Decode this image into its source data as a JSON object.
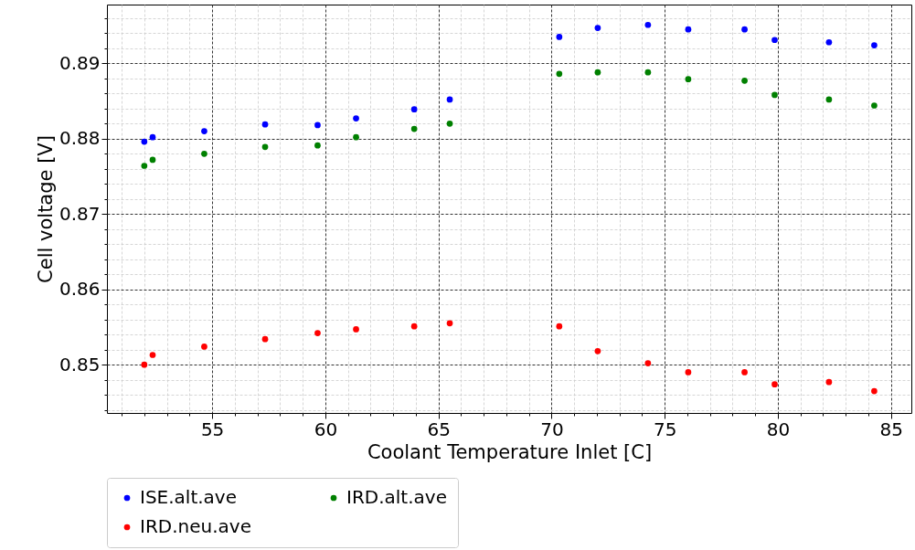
{
  "chart_data": {
    "type": "scatter",
    "xlabel": "Coolant Temperature Inlet [C]",
    "ylabel": "Cell voltage [V]",
    "x": [
      52.0,
      52.37,
      54.65,
      57.34,
      59.66,
      61.36,
      63.93,
      65.5,
      70.34,
      72.04,
      74.26,
      76.04,
      78.53,
      79.86,
      82.26,
      84.26
    ],
    "series": [
      {
        "name": "ISE.alt.ave",
        "color": "#0000ff",
        "values": [
          0.8796,
          0.8802,
          0.881,
          0.8819,
          0.8818,
          0.8827,
          0.8839,
          0.8852,
          0.8935,
          0.8947,
          0.8951,
          0.8945,
          0.8945,
          0.8931,
          0.8928,
          0.8924
        ]
      },
      {
        "name": "IRD.alt.ave",
        "color": "#008000",
        "values": [
          0.8764,
          0.8772,
          0.878,
          0.8789,
          0.8791,
          0.8802,
          0.8813,
          0.882,
          0.8886,
          0.8888,
          0.8888,
          0.8879,
          0.8877,
          0.8858,
          0.8852,
          0.8844
        ]
      },
      {
        "name": "IRD.neu.ave",
        "color": "#ff0000",
        "values": [
          0.85,
          0.8513,
          0.8524,
          0.8534,
          0.8542,
          0.8547,
          0.8551,
          0.8555,
          0.8551,
          0.8518,
          0.8502,
          0.849,
          0.849,
          0.8474,
          0.8477,
          0.8465
        ]
      }
    ],
    "xlim": [
      50.35,
      85.9
    ],
    "ylim": [
      0.8436,
      0.8978
    ],
    "xticks": [
      {
        "value": 51,
        "label": null
      },
      {
        "value": 52,
        "label": null
      },
      {
        "value": 53,
        "label": null
      },
      {
        "value": 54,
        "label": null
      },
      55,
      {
        "value": 56,
        "label": null
      },
      {
        "value": 57,
        "label": null
      },
      {
        "value": 58,
        "label": null
      },
      {
        "value": 59,
        "label": null
      },
      60,
      {
        "value": 61,
        "label": null
      },
      {
        "value": 62,
        "label": null
      },
      {
        "value": 63,
        "label": null
      },
      {
        "value": 64,
        "label": null
      },
      65,
      {
        "value": 66,
        "label": null
      },
      {
        "value": 67,
        "label": null
      },
      {
        "value": 68,
        "label": null
      },
      {
        "value": 69,
        "label": null
      },
      70,
      {
        "value": 71,
        "label": null
      },
      {
        "value": 72,
        "label": null
      },
      {
        "value": 73,
        "label": null
      },
      {
        "value": 74,
        "label": null
      },
      75,
      {
        "value": 76,
        "label": null
      },
      {
        "value": 77,
        "label": null
      },
      {
        "value": 78,
        "label": null
      },
      {
        "value": 79,
        "label": null
      },
      80,
      {
        "value": 81,
        "label": null
      },
      {
        "value": 82,
        "label": null
      },
      {
        "value": 83,
        "label": null
      },
      {
        "value": 84,
        "label": null
      },
      85
    ],
    "yticks": [
      {
        "value": 0.844,
        "label": null
      },
      {
        "value": 0.846,
        "label": null
      },
      {
        "value": 0.848,
        "label": null
      },
      0.85,
      {
        "value": 0.852,
        "label": null
      },
      {
        "value": 0.854,
        "label": null
      },
      {
        "value": 0.856,
        "label": null
      },
      {
        "value": 0.858,
        "label": null
      },
      0.86,
      {
        "value": 0.862,
        "label": null
      },
      {
        "value": 0.864,
        "label": null
      },
      {
        "value": 0.866,
        "label": null
      },
      {
        "value": 0.868,
        "label": null
      },
      0.87,
      {
        "value": 0.872,
        "label": null
      },
      {
        "value": 0.874,
        "label": null
      },
      {
        "value": 0.876,
        "label": null
      },
      {
        "value": 0.878,
        "label": null
      },
      0.88,
      {
        "value": 0.882,
        "label": null
      },
      {
        "value": 0.884,
        "label": null
      },
      {
        "value": 0.886,
        "label": null
      },
      {
        "value": 0.888,
        "label": null
      },
      0.89,
      {
        "value": 0.892,
        "label": null
      },
      {
        "value": 0.894,
        "label": null
      },
      {
        "value": 0.896,
        "label": null
      }
    ],
    "grid": true,
    "legend": "bottom",
    "marker": "circle"
  }
}
